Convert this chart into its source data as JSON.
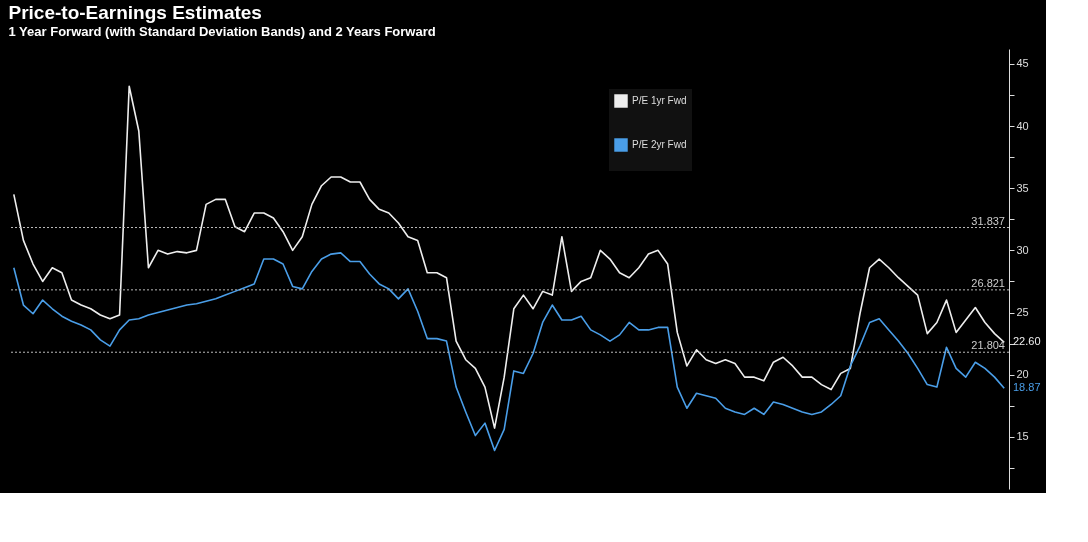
{
  "chart_data": {
    "type": "line",
    "title": "Price-to-Earnings Estimates",
    "subtitle": "1 Year Forward (with Standard Deviation Bands) and 2 Years Forward",
    "categories": [
      null,
      null,
      null,
      null,
      null,
      null,
      null,
      null,
      null,
      null,
      null,
      null,
      null,
      null,
      null,
      null,
      null,
      null,
      null,
      null,
      null,
      null,
      null,
      null,
      null,
      null,
      null,
      null,
      null,
      null,
      null,
      null,
      null,
      null,
      null,
      null,
      null,
      null,
      null,
      null,
      null,
      null,
      null,
      null,
      null,
      null,
      null,
      null,
      null,
      null,
      null,
      null,
      null,
      null,
      null,
      null,
      null,
      null,
      null,
      null,
      null,
      null,
      null,
      null,
      null,
      null,
      null,
      null,
      null,
      null,
      null,
      null,
      null,
      null,
      null,
      null,
      null,
      null,
      null,
      null,
      null,
      null,
      null,
      null,
      null,
      null,
      null,
      null,
      null,
      null,
      null,
      null,
      null,
      null,
      null,
      null,
      null,
      null,
      null,
      null,
      null,
      null,
      null,
      null
    ],
    "series": [
      {
        "name": "P/E 1yr Fwd",
        "color": "#eeeeee",
        "values": [
          34.5,
          30.8,
          28.9,
          27.5,
          28.6,
          28.2,
          26.0,
          25.6,
          25.3,
          24.8,
          24.5,
          24.8,
          43.2,
          39.6,
          28.6,
          30.0,
          29.7,
          29.9,
          29.8,
          30.0,
          33.7,
          34.1,
          34.1,
          31.9,
          31.5,
          33.0,
          33.0,
          32.6,
          31.5,
          30.0,
          31.1,
          33.7,
          35.2,
          35.9,
          35.9,
          35.5,
          35.5,
          34.1,
          33.3,
          33.0,
          32.2,
          31.1,
          30.8,
          28.2,
          28.2,
          27.8,
          22.7,
          21.2,
          20.5,
          19.0,
          15.7,
          19.8,
          25.3,
          26.4,
          25.3,
          26.7,
          26.4,
          31.1,
          26.7,
          27.5,
          27.8,
          30.0,
          29.3,
          28.2,
          27.8,
          28.6,
          29.7,
          30.0,
          28.9,
          23.4,
          20.7,
          22.0,
          21.2,
          20.9,
          21.2,
          20.9,
          19.8,
          19.8,
          19.5,
          21.0,
          21.4,
          20.7,
          19.8,
          19.8,
          19.2,
          18.8,
          20.1,
          20.5,
          24.9,
          28.6,
          29.3,
          28.6,
          27.8,
          27.1,
          26.4,
          23.3,
          24.2,
          26.0,
          23.4,
          24.4,
          25.4,
          24.2,
          23.3,
          22.6
        ]
      },
      {
        "name": "P/E 2yr Fwd",
        "color": "#4a9ee8",
        "values": [
          28.6,
          25.6,
          24.9,
          26.0,
          25.3,
          24.7,
          24.3,
          24.0,
          23.6,
          22.8,
          22.3,
          23.6,
          24.4,
          24.5,
          24.8,
          25.0,
          25.2,
          25.4,
          25.6,
          25.7,
          25.9,
          26.1,
          26.4,
          26.7,
          27.0,
          27.3,
          29.3,
          29.3,
          28.9,
          27.1,
          26.9,
          28.3,
          29.3,
          29.7,
          29.8,
          29.1,
          29.1,
          28.1,
          27.3,
          26.9,
          26.1,
          26.9,
          25.1,
          22.9,
          22.9,
          22.7,
          19.0,
          17.0,
          15.1,
          16.1,
          13.9,
          15.6,
          20.3,
          20.1,
          21.7,
          24.2,
          25.6,
          24.4,
          24.4,
          24.7,
          23.6,
          23.2,
          22.7,
          23.2,
          24.2,
          23.6,
          23.6,
          23.8,
          23.8,
          19.0,
          17.3,
          18.5,
          18.3,
          18.1,
          17.3,
          17.0,
          16.8,
          17.3,
          16.8,
          17.8,
          17.6,
          17.3,
          17.0,
          16.8,
          17.0,
          17.6,
          18.3,
          20.7,
          22.3,
          24.2,
          24.5,
          23.6,
          22.7,
          21.7,
          20.5,
          19.2,
          19.0,
          22.2,
          20.5,
          19.8,
          21.0,
          20.5,
          19.8,
          18.9
        ]
      }
    ],
    "ylim": [
      10.8,
      46.2
    ],
    "yticks": [
      {
        "value": 12.5,
        "label": null
      },
      15,
      {
        "value": 17.5,
        "label": null
      },
      20,
      {
        "value": 22.5,
        "label": null
      },
      25,
      {
        "value": 27.5,
        "label": null
      },
      30,
      {
        "value": 32.5,
        "label": null
      },
      35,
      {
        "value": 37.5,
        "label": null
      },
      40,
      {
        "value": 42.5,
        "label": null
      },
      45
    ],
    "ref_lines": [
      {
        "axis": "y",
        "value": 31.837,
        "label": "31.837",
        "color": "#bbbbbb",
        "line_style": "dotted"
      },
      {
        "axis": "y",
        "value": 26.821,
        "label": "26.821",
        "color": "#bbbbbb",
        "line_style": "dotted"
      },
      {
        "axis": "y",
        "value": 21.804,
        "label": "21.804",
        "color": "#bbbbbb",
        "line_style": "dotted"
      }
    ],
    "annotations": [
      "22.60",
      "18.87"
    ],
    "grid": false,
    "legend": "top",
    "tick_labels": "y",
    "line_style": "solid",
    "marker": "none"
  }
}
